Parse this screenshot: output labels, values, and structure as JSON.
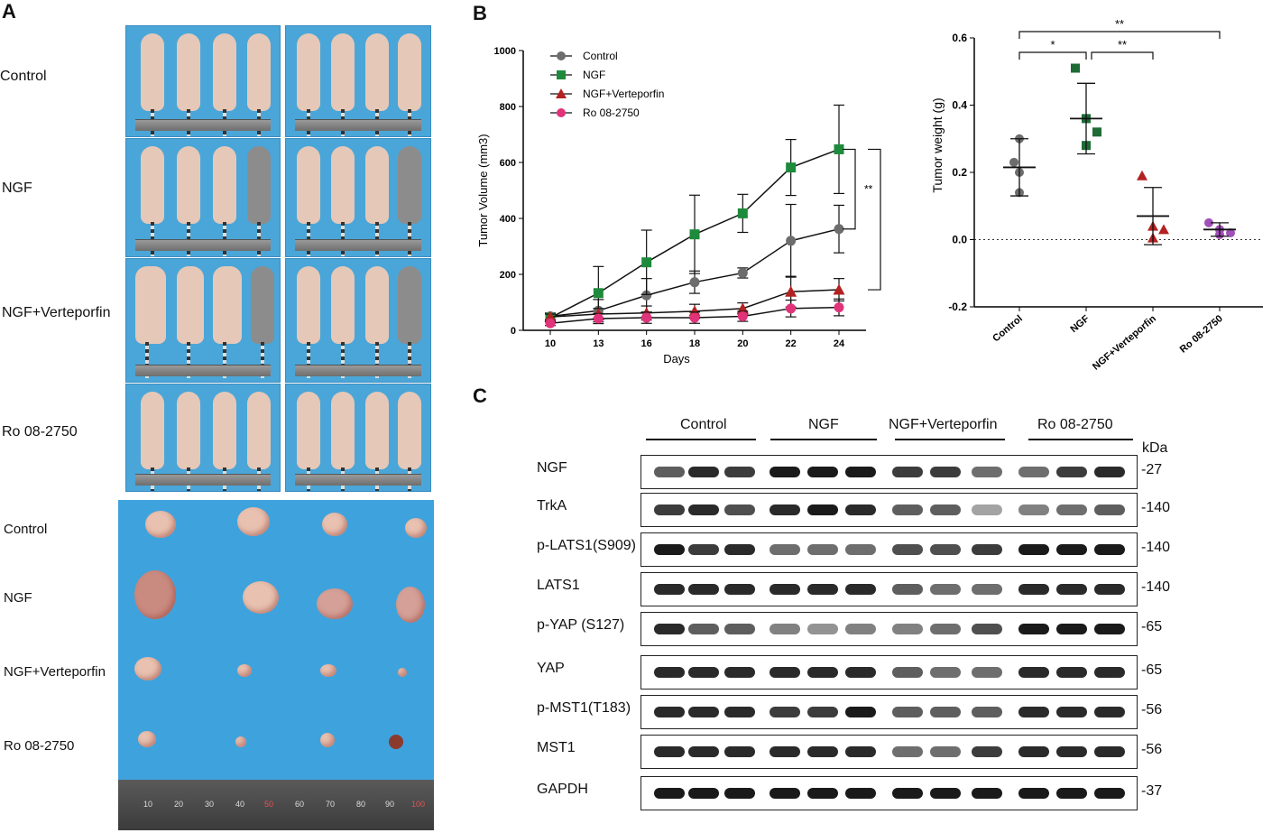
{
  "panels": {
    "a": "A",
    "b": "B",
    "c": "C"
  },
  "photo_row_labels": [
    "Control",
    "NGF",
    "NGF+Verteporfin",
    "Ro  08-2750"
  ],
  "tumor_row_labels": [
    "Control",
    "NGF",
    "NGF+Verteporfin",
    "Ro  08-2750"
  ],
  "ruler_numbers": [
    "10",
    "20",
    "30",
    "40",
    "50",
    "60",
    "70",
    "80",
    "90",
    "100"
  ],
  "chart_data": [
    {
      "type": "line",
      "xlabel": "Days",
      "ylabel": "Tumor Volume (mm3)",
      "x": [
        10,
        13,
        16,
        18,
        20,
        22,
        24
      ],
      "xticks": [
        "10",
        "13",
        "16",
        "18",
        "20",
        "22",
        "24"
      ],
      "yticks": [
        "0",
        "200",
        "400",
        "600",
        "800",
        "1000"
      ],
      "ylim": [
        0,
        1000
      ],
      "legend_position": "top-left",
      "series": [
        {
          "name": "Control",
          "color": "#6d6d6d",
          "marker": "circle",
          "values": [
            50,
            70,
            125,
            172,
            205,
            320,
            362
          ],
          "err": [
            12,
            40,
            60,
            40,
            18,
            130,
            85
          ]
        },
        {
          "name": "NGF",
          "color": "#1e8a3c",
          "marker": "square",
          "values": [
            45,
            133,
            243,
            343,
            418,
            582,
            647
          ],
          "err": [
            15,
            95,
            115,
            140,
            68,
            100,
            158
          ]
        },
        {
          "name": "NGF+Verteporfin",
          "color": "#b32222",
          "marker": "triangle",
          "values": [
            48,
            58,
            62,
            68,
            78,
            138,
            145
          ],
          "err": [
            10,
            20,
            25,
            25,
            20,
            55,
            40
          ]
        },
        {
          "name": "Ro 08-2750",
          "color": "#e0337a",
          "marker": "circle",
          "values": [
            25,
            42,
            45,
            45,
            50,
            78,
            82
          ],
          "err": [
            8,
            18,
            20,
            20,
            18,
            30,
            30
          ]
        }
      ],
      "significance": [
        "**",
        "**",
        "*"
      ]
    },
    {
      "type": "scatter",
      "ylabel": "Tumor weight (g)",
      "categories": [
        "Control",
        "NGF",
        "NGF+Verteporfin",
        "Ro  08-2750"
      ],
      "yticks": [
        "-0.2",
        "0.0",
        "0.2",
        "0.4",
        "0.6"
      ],
      "ylim": [
        -0.2,
        0.6
      ],
      "groups": [
        {
          "name": "Control",
          "color": "#6d6d6d",
          "marker": "circle",
          "points": [
            0.3,
            0.23,
            0.2,
            0.14
          ],
          "mean": 0.215,
          "sd": 0.085
        },
        {
          "name": "NGF",
          "color": "#1e6b35",
          "marker": "square",
          "points": [
            0.51,
            0.36,
            0.32,
            0.28
          ],
          "mean": 0.36,
          "sd": 0.105
        },
        {
          "name": "NGF+Verteporfin",
          "color": "#b32222",
          "marker": "triangle",
          "points": [
            0.19,
            0.04,
            0.03,
            0.005
          ],
          "mean": 0.07,
          "sd": 0.085
        },
        {
          "name": "Ro  08-2750",
          "color": "#a050b8",
          "marker": "circle",
          "points": [
            0.05,
            0.03,
            0.02,
            0.015
          ],
          "mean": 0.03,
          "sd": 0.02
        }
      ],
      "significance": [
        "**",
        "*",
        "**"
      ]
    }
  ],
  "western": {
    "groups": [
      "Control",
      "NGF",
      "NGF+Verteporfin",
      "Ro  08-2750"
    ],
    "kda_header": "kDa",
    "rows": [
      {
        "label": "NGF",
        "kda": "-27",
        "intensity": [
          0.6,
          0.9,
          0.8,
          1,
          1,
          1,
          0.8,
          0.8,
          0.5,
          0.5,
          0.8,
          0.9
        ]
      },
      {
        "label": "TrkA",
        "kda": "-140",
        "intensity": [
          0.8,
          0.9,
          0.7,
          0.9,
          1,
          0.9,
          0.6,
          0.6,
          0.2,
          0.4,
          0.5,
          0.6
        ]
      },
      {
        "label": "p-LATS1(S909)",
        "kda": "-140",
        "intensity": [
          1,
          0.8,
          0.9,
          0.5,
          0.5,
          0.5,
          0.7,
          0.7,
          0.8,
          1,
          1,
          1
        ]
      },
      {
        "label": "LATS1",
        "kda": "-140",
        "intensity": [
          0.9,
          0.9,
          0.9,
          0.9,
          0.9,
          0.9,
          0.6,
          0.5,
          0.5,
          0.9,
          0.9,
          0.9
        ]
      },
      {
        "label": "p-YAP (S127)",
        "kda": "-65",
        "intensity": [
          0.9,
          0.6,
          0.6,
          0.4,
          0.3,
          0.4,
          0.4,
          0.5,
          0.7,
          1,
          1,
          1
        ]
      },
      {
        "label": "YAP",
        "kda": "-65",
        "intensity": [
          0.9,
          0.9,
          0.9,
          0.9,
          0.9,
          0.9,
          0.6,
          0.5,
          0.5,
          0.9,
          0.9,
          0.9
        ]
      },
      {
        "label": "p-MST1(T183)",
        "kda": "-56",
        "intensity": [
          0.9,
          0.9,
          0.9,
          0.8,
          0.8,
          1,
          0.6,
          0.6,
          0.6,
          0.9,
          0.9,
          0.9
        ]
      },
      {
        "label": "MST1",
        "kda": "-56",
        "intensity": [
          0.9,
          0.9,
          0.9,
          0.9,
          0.9,
          0.9,
          0.5,
          0.5,
          0.8,
          0.9,
          0.9,
          0.9
        ]
      },
      {
        "label": "GAPDH",
        "kda": "-37",
        "intensity": [
          1,
          1,
          1,
          1,
          1,
          1,
          1,
          1,
          1,
          1,
          1,
          1
        ]
      }
    ]
  }
}
